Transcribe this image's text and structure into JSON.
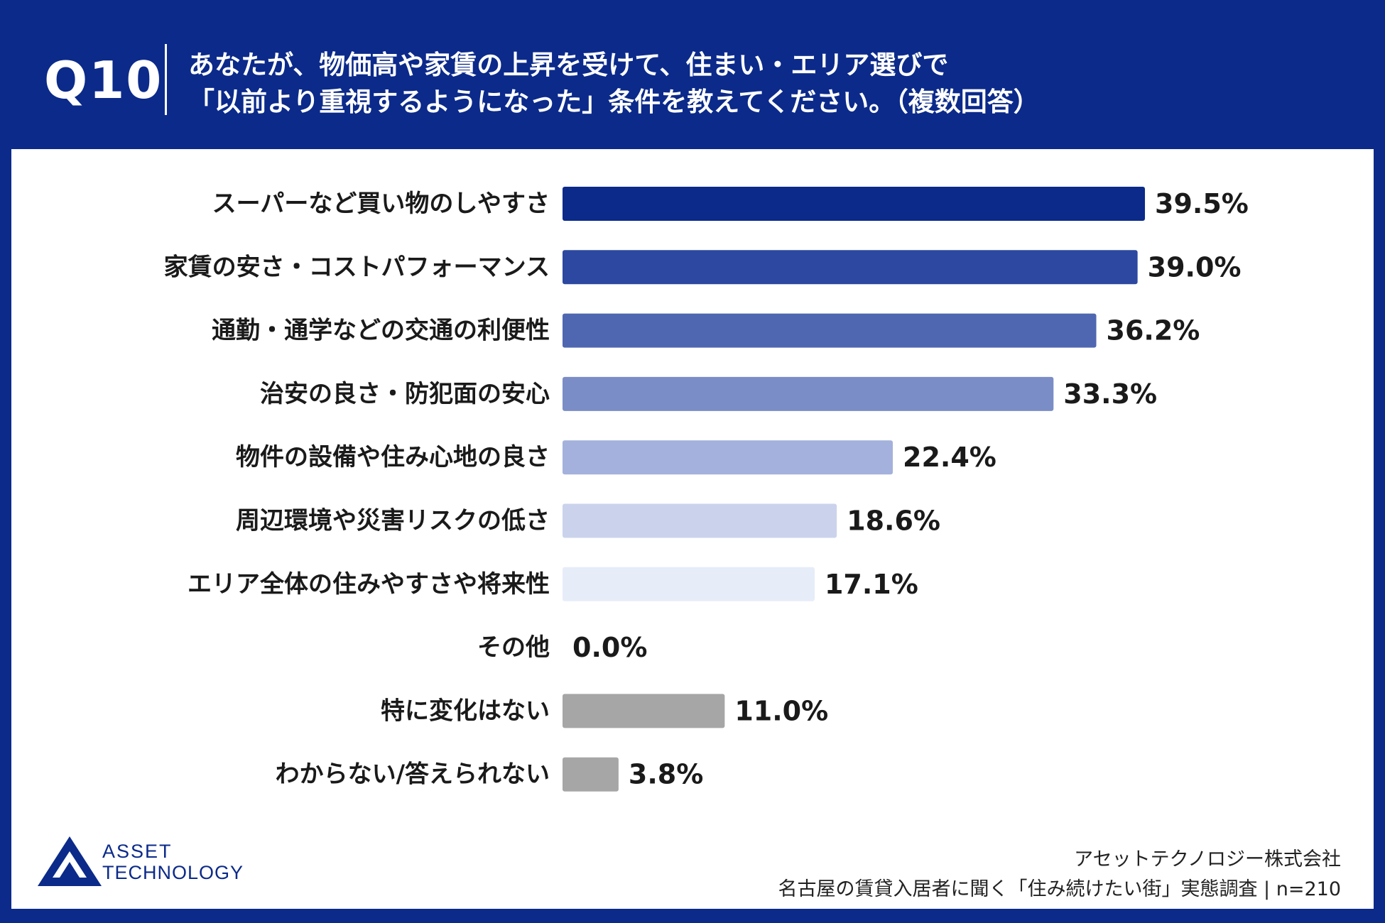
{
  "header": {
    "question_number": "Q10",
    "question_line1": "あなたが、物価高や家賃の上昇を受けて、住まい・エリア選びで",
    "question_line2": "「以前より重視するようになった」条件を教えてください。（複数回答）"
  },
  "chart_data": {
    "type": "bar",
    "orientation": "horizontal",
    "categories": [
      "スーパーなど買い物のしやすさ",
      "家賃の安さ・コストパフォーマンス",
      "通勤・通学などの交通の利便性",
      "治安の良さ・防犯面の安心",
      "物件の設備や住み心地の良さ",
      "周辺環境や災害リスクの低さ",
      "エリア全体の住みやすさや将来性",
      "その他",
      "特に変化はない",
      "わからない/答えられない"
    ],
    "values": [
      39.5,
      39.0,
      36.2,
      33.3,
      22.4,
      18.6,
      17.1,
      0.0,
      11.0,
      3.8
    ],
    "value_labels": [
      "39.5%",
      "39.0%",
      "36.2%",
      "33.3%",
      "22.4%",
      "18.6%",
      "17.1%",
      "0.0%",
      "11.0%",
      "3.8%"
    ],
    "colors": [
      "#0b2a8a",
      "#2c48a0",
      "#4f67b1",
      "#7a8dc6",
      "#a4b1dc",
      "#cbd3ec",
      "#e6edf9",
      "#cbd3ec",
      "#a6a6a6",
      "#a6a6a6"
    ],
    "unit": "%",
    "grid": false,
    "legend": "none"
  },
  "logo": {
    "line1": "ASSET",
    "line2": "TECHNOLOGY"
  },
  "footer": {
    "company": "アセットテクノロジー株式会社",
    "source": "名古屋の賃貸入居者に聞く「住み続けたい街」実態調査 | n=210"
  }
}
